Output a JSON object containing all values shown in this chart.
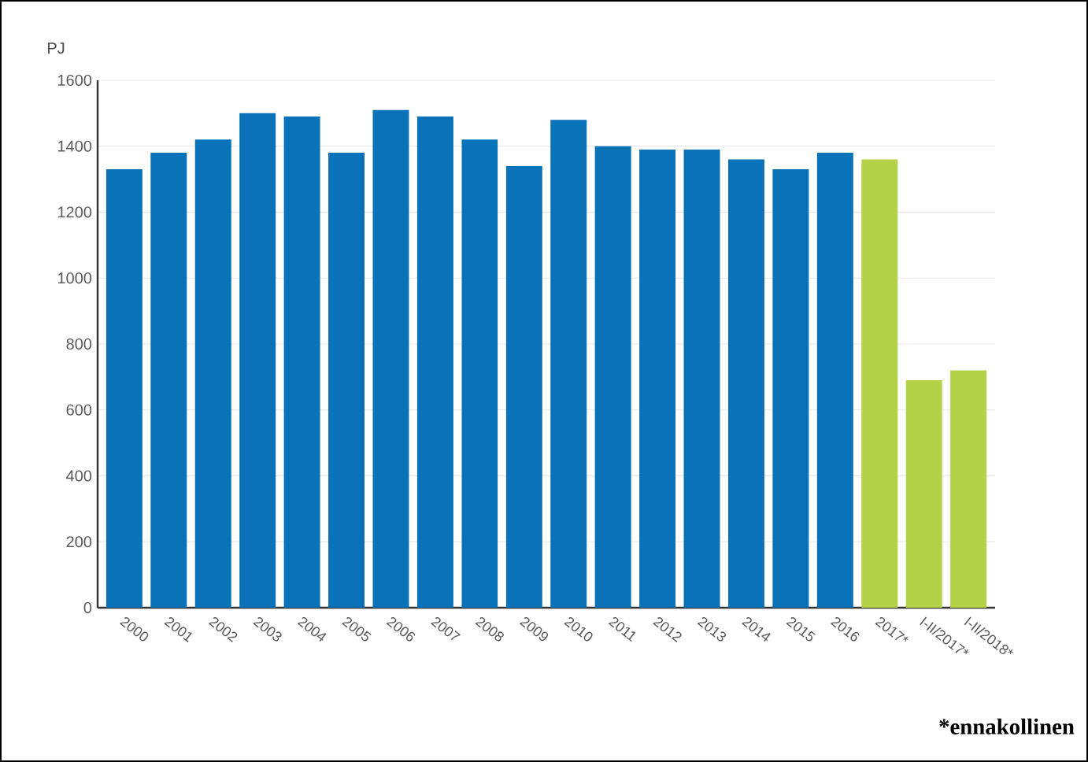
{
  "chart_data": {
    "type": "bar",
    "ylabel": "PJ",
    "categories": [
      "2000",
      "2001",
      "2002",
      "2003",
      "2004",
      "2005",
      "2006",
      "2007",
      "2008",
      "2009",
      "2010",
      "2011",
      "2012",
      "2013",
      "2014",
      "2015",
      "2016",
      "2017*",
      "I-II/2017*",
      "I-II/2018*"
    ],
    "values": [
      1330,
      1380,
      1420,
      1500,
      1490,
      1380,
      1510,
      1490,
      1420,
      1340,
      1480,
      1400,
      1390,
      1390,
      1360,
      1330,
      1380,
      1360,
      690,
      720
    ],
    "colors": [
      "#0a72b8",
      "#0a72b8",
      "#0a72b8",
      "#0a72b8",
      "#0a72b8",
      "#0a72b8",
      "#0a72b8",
      "#0a72b8",
      "#0a72b8",
      "#0a72b8",
      "#0a72b8",
      "#0a72b8",
      "#0a72b8",
      "#0a72b8",
      "#0a72b8",
      "#0a72b8",
      "#0a72b8",
      "#b5d148",
      "#b5d148",
      "#b5d148"
    ],
    "ylim": [
      0,
      1600
    ],
    "yticks": [
      0,
      200,
      400,
      600,
      800,
      1000,
      1200,
      1400,
      1600
    ],
    "grid": "y",
    "annotations": [
      "*ennakollinen"
    ]
  }
}
